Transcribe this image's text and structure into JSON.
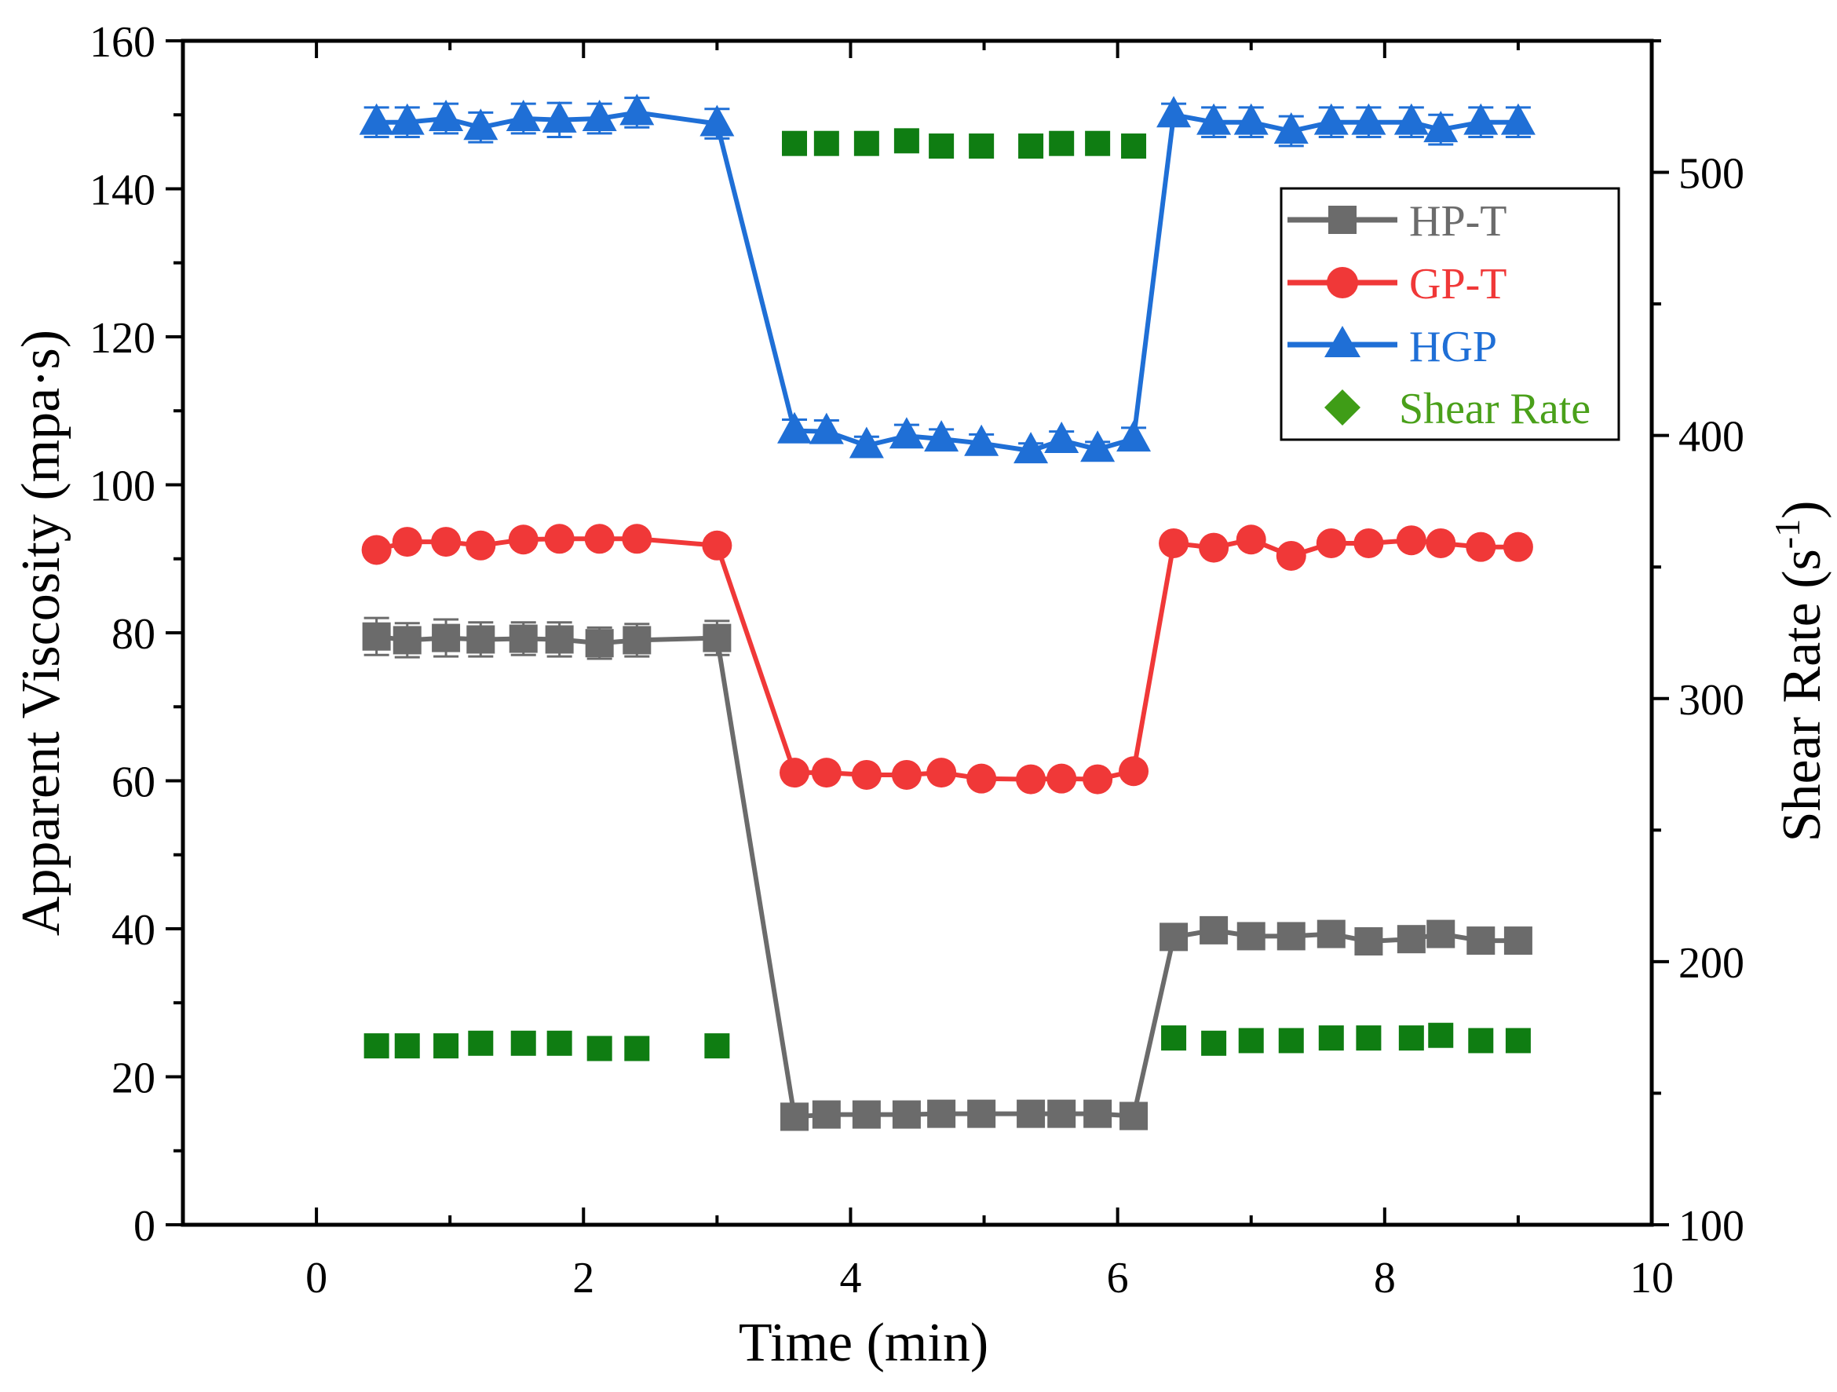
{
  "chart_data": {
    "type": "line",
    "title": "",
    "xlabel": "Time (min)",
    "ylabel": "Apparent Viscosity (mpa·s)",
    "y2label_base": "Shear Rate (s",
    "y2label_sup": "-1",
    "y2label_close": ")",
    "xlim": [
      -1,
      10
    ],
    "ylim": [
      0,
      160
    ],
    "y2lim": [
      100,
      550
    ],
    "xticks": [
      "0",
      "2",
      "4",
      "6",
      "8",
      "10"
    ],
    "yticks": [
      "0",
      "20",
      "40",
      "60",
      "80",
      "100",
      "120",
      "140",
      "160"
    ],
    "y2ticks": [
      "100",
      "200",
      "300",
      "400",
      "500"
    ],
    "legend_position": "top-right",
    "colors": {
      "hp_t": "#6b6b6b",
      "gp_t": "#f03838",
      "hgp": "#1f6fd6",
      "shear_marker": "#0f7d12",
      "shear_legend_marker": "#3f9d17",
      "shear_legend_text": "#4aa01a"
    },
    "series": [
      {
        "name": "HP-T",
        "axis": "left",
        "marker": "square",
        "color": "#6b6b6b",
        "x": [
          0.45,
          0.68,
          0.97,
          1.23,
          1.55,
          1.82,
          2.12,
          2.4,
          3.0,
          3.58,
          3.82,
          4.12,
          4.42,
          4.68,
          4.98,
          5.35,
          5.58,
          5.85,
          6.12,
          6.42,
          6.72,
          7.0,
          7.3,
          7.6,
          7.88,
          8.2,
          8.42,
          8.72,
          9.0
        ],
        "y": [
          79.5,
          79.0,
          79.3,
          79.1,
          79.2,
          79.1,
          78.6,
          79.0,
          79.3,
          14.6,
          14.9,
          14.9,
          14.9,
          15.0,
          15.0,
          15.0,
          15.0,
          15.0,
          14.7,
          38.9,
          39.8,
          39.0,
          39.0,
          39.3,
          38.3,
          38.6,
          39.3,
          38.4,
          38.4
        ],
        "error": [
          2.5,
          2.3,
          2.5,
          2.3,
          2.2,
          2.3,
          2.1,
          2.2,
          2.3,
          0.5,
          0.5,
          0.5,
          0.5,
          0.5,
          0.5,
          0.5,
          0.5,
          0.5,
          0.5,
          1.0,
          1.0,
          1.0,
          1.0,
          1.0,
          1.0,
          1.0,
          1.0,
          1.0,
          1.0
        ]
      },
      {
        "name": "GP-T",
        "axis": "left",
        "marker": "circle",
        "color": "#f03838",
        "x": [
          0.45,
          0.68,
          0.97,
          1.23,
          1.55,
          1.82,
          2.12,
          2.4,
          3.0,
          3.58,
          3.82,
          4.12,
          4.42,
          4.68,
          4.98,
          5.35,
          5.58,
          5.85,
          6.12,
          6.42,
          6.72,
          7.0,
          7.3,
          7.6,
          7.88,
          8.2,
          8.42,
          8.72,
          9.0
        ],
        "y": [
          91.2,
          92.3,
          92.3,
          91.8,
          92.6,
          92.7,
          92.7,
          92.7,
          91.8,
          61.1,
          61.1,
          60.8,
          60.8,
          61.1,
          60.3,
          60.2,
          60.3,
          60.2,
          61.3,
          92.1,
          91.5,
          92.6,
          90.4,
          92.1,
          92.1,
          92.5,
          92.1,
          91.6,
          91.6
        ],
        "error": [
          0.7,
          0.7,
          0.7,
          0.7,
          0.7,
          0.7,
          0.7,
          0.7,
          0.7,
          0.6,
          0.6,
          0.6,
          0.6,
          0.6,
          0.6,
          0.6,
          0.6,
          0.6,
          0.6,
          0.7,
          0.7,
          0.7,
          0.7,
          0.7,
          0.7,
          0.7,
          0.7,
          0.7,
          0.7
        ]
      },
      {
        "name": "HGP",
        "axis": "left",
        "marker": "triangle",
        "color": "#1f6fd6",
        "x": [
          0.45,
          0.68,
          0.97,
          1.23,
          1.55,
          1.82,
          2.12,
          2.4,
          3.0,
          3.58,
          3.82,
          4.12,
          4.42,
          4.68,
          4.98,
          5.35,
          5.58,
          5.85,
          6.12,
          6.42,
          6.72,
          7.0,
          7.3,
          7.6,
          7.88,
          8.2,
          8.42,
          8.72,
          9.0
        ],
        "y": [
          149.0,
          149.0,
          149.5,
          148.3,
          149.5,
          149.3,
          149.5,
          150.3,
          148.8,
          107.3,
          107.2,
          105.3,
          106.6,
          106.2,
          105.6,
          104.6,
          106.0,
          104.8,
          106.2,
          150.0,
          149.0,
          149.0,
          147.8,
          149.0,
          149.0,
          149.0,
          148.0,
          149.0,
          149.0
        ],
        "error": [
          2.0,
          2.0,
          2.0,
          2.0,
          2.0,
          2.3,
          2.0,
          2.0,
          2.0,
          1.5,
          1.5,
          1.2,
          1.5,
          1.3,
          1.2,
          1.0,
          1.2,
          1.0,
          1.5,
          1.5,
          2.0,
          2.0,
          2.0,
          2.0,
          2.0,
          2.0,
          2.0,
          2.0,
          2.0
        ]
      },
      {
        "name": "Shear Rate",
        "axis": "right",
        "marker": "square",
        "legend_marker": "diamond",
        "color": "#0f7d12",
        "x": [
          0.45,
          0.68,
          0.97,
          1.23,
          1.55,
          1.82,
          2.12,
          2.4,
          3.0,
          3.58,
          3.82,
          4.12,
          4.42,
          4.68,
          4.98,
          5.35,
          5.58,
          5.85,
          6.12,
          6.42,
          6.72,
          7.0,
          7.3,
          7.6,
          7.88,
          8.2,
          8.42,
          8.72,
          9.0
        ],
        "y": [
          168,
          168,
          168,
          169,
          169,
          169,
          167,
          167,
          168,
          511,
          511,
          511,
          512,
          510,
          510,
          510,
          511,
          511,
          510,
          171,
          169,
          170,
          170,
          171,
          171,
          171,
          172,
          170,
          170
        ]
      }
    ]
  }
}
